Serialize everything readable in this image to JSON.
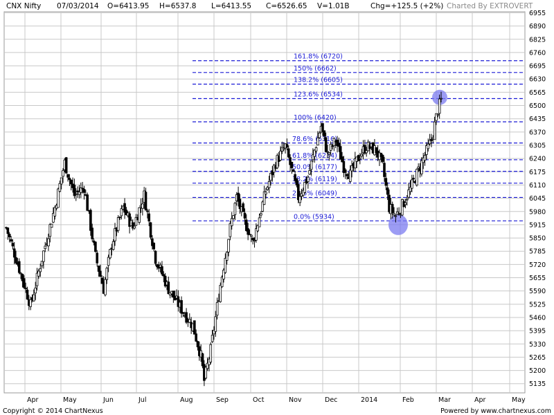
{
  "header": {
    "symbol": "CNX Nifty",
    "date": "07/03/2014",
    "open": "O=6413.95",
    "high": "H=6537.8",
    "low": "L=6413.55",
    "close": "C=6526.65",
    "volume": "V=1.01B",
    "change": "Chg=+125.5 (+2%)",
    "credit": "Charted By EXTROVERT"
  },
  "footer": {
    "copyright": "Copyright © 2014 ChartNexus",
    "powered": "Powered by www.chartnexus.com"
  },
  "colors": {
    "grid": "#c8c8c8",
    "fib_line": "#1a1ad6",
    "highlight": "#7b7bf0",
    "candle_outline": "#000000"
  },
  "chart_data": {
    "type": "candlestick",
    "grid": true,
    "ylim": [
      5090,
      6960
    ],
    "y_ticks": [
      "6955",
      "6890",
      "6825",
      "6760",
      "6695",
      "6630",
      "6565",
      "6500",
      "6435",
      "6370",
      "6305",
      "6240",
      "6175",
      "6110",
      "6045",
      "5980",
      "5915",
      "5850",
      "5785",
      "5720",
      "5655",
      "5590",
      "5525",
      "5460",
      "5395",
      "5330",
      "5265",
      "5200",
      "5135"
    ],
    "x_labels": [
      "Apr",
      "May",
      "Jun",
      "Jul",
      "Aug",
      "Sep",
      "Oct",
      "Nov",
      "Dec",
      "2014",
      "Feb",
      "Mar",
      "Apr",
      "May"
    ],
    "fib_levels": [
      {
        "label": "161.8%  (6720)",
        "value": 6720
      },
      {
        "label": "150%  (6662)",
        "value": 6662
      },
      {
        "label": "138.2%  (6605)",
        "value": 6605
      },
      {
        "label": "123.6%  (6534)",
        "value": 6534
      },
      {
        "label": "100%  (6420)",
        "value": 6420
      },
      {
        "label": "78.6%  (6316)",
        "value": 6316
      },
      {
        "label": "61.8%  (6234)",
        "value": 6234
      },
      {
        "label": "50.0%  (6177)",
        "value": 6177
      },
      {
        "label": "38.2%  (6119)",
        "value": 6119
      },
      {
        "label": "23.6%  (6049)",
        "value": 6049
      },
      {
        "label": "0.0%  (5934)",
        "value": 5934
      }
    ],
    "highlights": [
      {
        "name": "swing-high",
        "value": 6540
      },
      {
        "name": "swing-low",
        "value": 5915
      }
    ],
    "anchors": [
      [
        0,
        5900
      ],
      [
        8,
        5700
      ],
      [
        15,
        5520
      ],
      [
        22,
        5750
      ],
      [
        30,
        6000
      ],
      [
        36,
        6220
      ],
      [
        42,
        6060
      ],
      [
        48,
        6100
      ],
      [
        55,
        5760
      ],
      [
        60,
        5600
      ],
      [
        65,
        5820
      ],
      [
        72,
        6000
      ],
      [
        78,
        5900
      ],
      [
        85,
        6060
      ],
      [
        92,
        5750
      ],
      [
        100,
        5600
      ],
      [
        108,
        5500
      ],
      [
        115,
        5420
      ],
      [
        120,
        5270
      ],
      [
        122,
        5150
      ],
      [
        126,
        5300
      ],
      [
        132,
        5620
      ],
      [
        138,
        5900
      ],
      [
        142,
        6050
      ],
      [
        146,
        5950
      ],
      [
        152,
        5830
      ],
      [
        160,
        6080
      ],
      [
        166,
        6220
      ],
      [
        172,
        6300
      ],
      [
        176,
        6180
      ],
      [
        180,
        6050
      ],
      [
        186,
        6150
      ],
      [
        190,
        6280
      ],
      [
        194,
        6400
      ],
      [
        198,
        6260
      ],
      [
        203,
        6330
      ],
      [
        208,
        6200
      ],
      [
        212,
        6160
      ],
      [
        218,
        6260
      ],
      [
        222,
        6300
      ],
      [
        228,
        6280
      ],
      [
        232,
        6200
      ],
      [
        236,
        6000
      ],
      [
        240,
        5960
      ],
      [
        244,
        6010
      ],
      [
        249,
        6090
      ],
      [
        256,
        6220
      ],
      [
        262,
        6330
      ],
      [
        266,
        6480
      ],
      [
        268,
        6526
      ]
    ]
  }
}
